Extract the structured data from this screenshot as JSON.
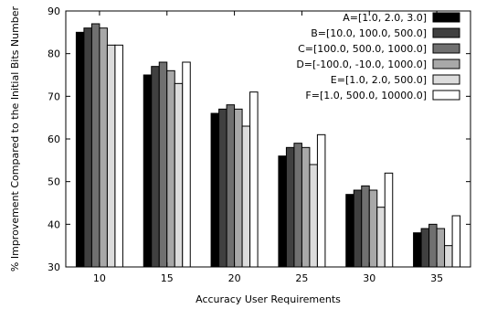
{
  "chart_data": {
    "type": "bar",
    "xlabel": "Accuracy User Requirements",
    "ylabel": "% Improvement Compared to the Initial Bits Number",
    "ylim": [
      30,
      90
    ],
    "yticks": [
      30,
      40,
      50,
      60,
      70,
      80,
      90
    ],
    "categories": [
      "10",
      "15",
      "20",
      "25",
      "30",
      "35"
    ],
    "grid": false,
    "legend_position": "top-right",
    "series": [
      {
        "name": "A=[1.0, 2.0, 3.0]",
        "color": "#000000",
        "values": [
          85,
          75,
          66,
          56,
          47,
          38
        ]
      },
      {
        "name": "B=[10.0, 100.0, 500.0]",
        "color": "#404040",
        "values": [
          86,
          77,
          67,
          58,
          48,
          39
        ]
      },
      {
        "name": "C=[100.0, 500.0, 1000.0]",
        "color": "#707070",
        "values": [
          87,
          78,
          68,
          59,
          49,
          40
        ]
      },
      {
        "name": "D=[-100.0, -10.0, 1000.0]",
        "color": "#a8a8a8",
        "values": [
          86,
          76,
          67,
          58,
          48,
          39
        ]
      },
      {
        "name": "E=[1.0, 2.0, 500.0]",
        "color": "#dcdcdc",
        "values": [
          82,
          73,
          63,
          54,
          44,
          35
        ]
      },
      {
        "name": "F=[1.0, 500.0, 10000.0]",
        "color": "#ffffff",
        "values": [
          82,
          78,
          71,
          61,
          52,
          42
        ]
      }
    ]
  }
}
